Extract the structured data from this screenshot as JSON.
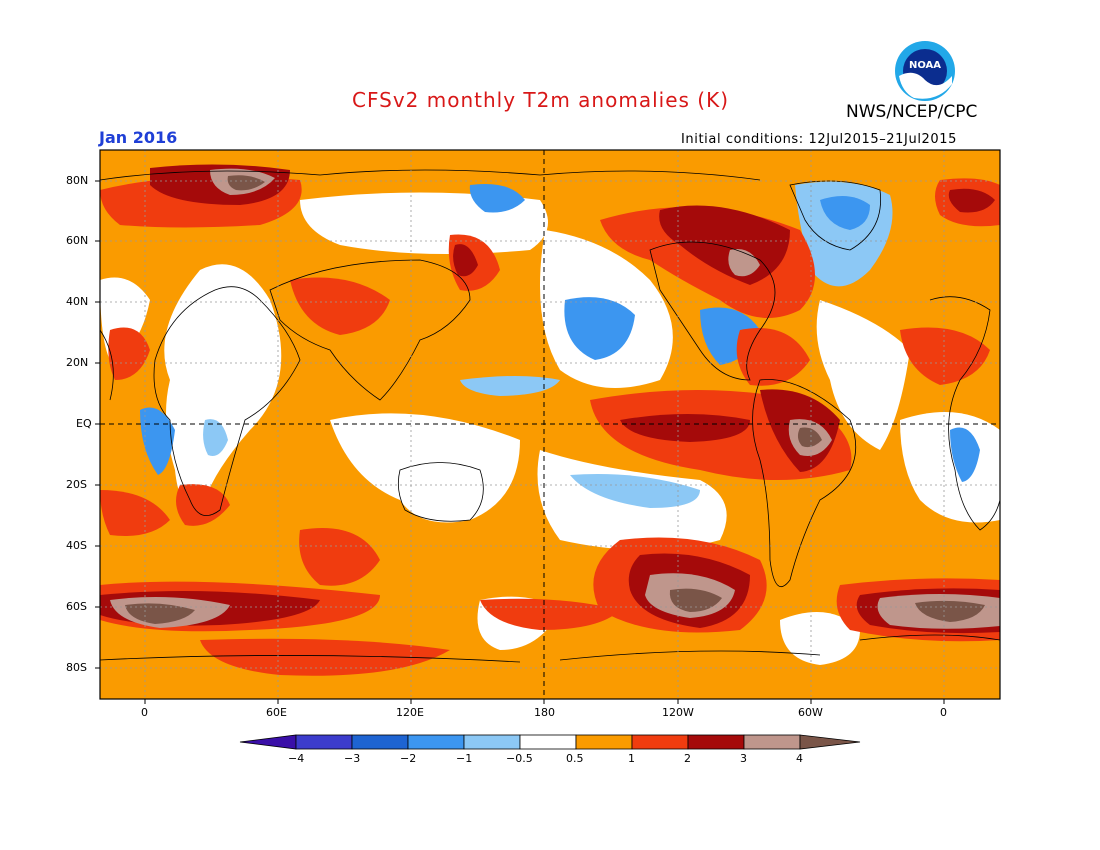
{
  "title": "CFSv2 monthly T2m anomalies (K)",
  "agency": "NWS/NCEP/CPC",
  "logo_text": "NOAA",
  "month": "Jan 2016",
  "initial_conditions": "Initial conditions: 12Jul2015–21Jul2015",
  "lat_labels": [
    "80N",
    "60N",
    "40N",
    "20N",
    "EQ",
    "20S",
    "40S",
    "60S",
    "80S"
  ],
  "lon_labels": [
    "0",
    "60E",
    "120E",
    "180",
    "120W",
    "60W",
    "0"
  ],
  "colorbar": {
    "labels": [
      "−4",
      "−3",
      "−2",
      "−1",
      "−0.5",
      "0.5",
      "1",
      "2",
      "3",
      "4"
    ],
    "colors": [
      "#3a0fa8",
      "#3c3ccc",
      "#1e64d2",
      "#3c96f0",
      "#8cc8f5",
      "#ffffff",
      "#fa9b00",
      "#f03c0f",
      "#a50a0a",
      "#bf968c",
      "#7a5548"
    ]
  }
}
